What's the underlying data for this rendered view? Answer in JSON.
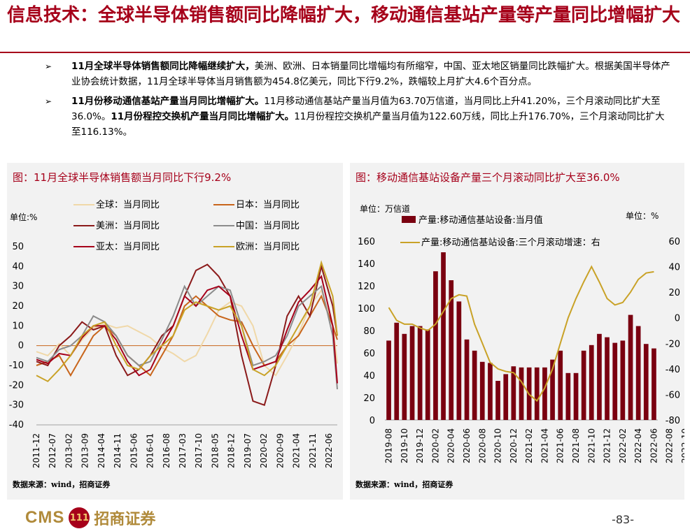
{
  "title": "信息技术：全球半导体销售额同比降幅扩大，移动通信基站产量等产量同比增幅扩大",
  "bullets": [
    {
      "bold": "11月全球半导体销售额同比降幅继续扩大，",
      "text": "美洲、欧洲、日本销量同比增幅均有所缩窄，中国、亚太地区销量同比跌幅扩大。根据美国半导体产业协会统计数据，11月全球半导体当月销售额为454.8亿美元，同比下行9.2%，跌幅较上月扩大4.6个百分点。"
    },
    {
      "bold": "11月份移动通信基站产量当月同比增幅扩大。",
      "text": "11月移动通信基站产量当月值为63.70万信道，当月同比上升41.20%，三个月滚动同比扩大至36.0%。",
      "bold2": "11月份程控交换机产量当月同比增幅扩大。",
      "text2": "11月份程控交换机产量当月值为122.60万线，同比上升176.70%，三个月滚动同比扩大至116.13%。"
    }
  ],
  "footer": {
    "logo": "CMS",
    "logo_mark": "111",
    "broker": "招商证券",
    "page": "-83-"
  },
  "chart_data": [
    {
      "type": "line",
      "title": "图：11月全球半导体销售额当月同比下行9.2%",
      "unit": "单位:%",
      "source": "数据来源：wind，招商证券",
      "ylim": [
        -40,
        50
      ],
      "yticks": [
        "50",
        "40",
        "30",
        "20",
        "10",
        "0",
        "-10",
        "-20",
        "-30",
        "-40"
      ],
      "xticks": [
        "2011-12",
        "2012-07",
        "2013-02",
        "2013-09",
        "2014-04",
        "2014-11",
        "2015-06",
        "2016-01",
        "2016-08",
        "2017-03",
        "2017-10",
        "2018-05",
        "2018-12",
        "2019-07",
        "2020-02",
        "2020-09",
        "2021-04",
        "2021-11",
        "2022-06"
      ],
      "x_index_range": [
        0,
        132
      ],
      "series": [
        {
          "name": "全球：当月同比",
          "color": "#f0d8a8",
          "points": [
            [
              0,
              -3
            ],
            [
              5,
              -5
            ],
            [
              10,
              1
            ],
            [
              15,
              -5
            ],
            [
              20,
              3
            ],
            [
              25,
              9
            ],
            [
              30,
              11
            ],
            [
              35,
              9
            ],
            [
              40,
              10
            ],
            [
              45,
              7
            ],
            [
              50,
              4
            ],
            [
              55,
              -1
            ],
            [
              60,
              -4
            ],
            [
              65,
              -8
            ],
            [
              70,
              -5
            ],
            [
              75,
              6
            ],
            [
              80,
              18
            ],
            [
              85,
              22
            ],
            [
              90,
              20
            ],
            [
              95,
              10
            ],
            [
              100,
              -10
            ],
            [
              105,
              -15
            ],
            [
              110,
              -5
            ],
            [
              115,
              6
            ],
            [
              120,
              20
            ],
            [
              125,
              28
            ],
            [
              130,
              10
            ],
            [
              132,
              -9
            ]
          ]
        },
        {
          "name": "日本：当月同比",
          "color": "#c8651b",
          "points": [
            [
              0,
              -10
            ],
            [
              5,
              -8
            ],
            [
              10,
              -5
            ],
            [
              15,
              -15
            ],
            [
              20,
              -5
            ],
            [
              25,
              5
            ],
            [
              30,
              10
            ],
            [
              35,
              5
            ],
            [
              40,
              -5
            ],
            [
              45,
              -10
            ],
            [
              50,
              -15
            ],
            [
              55,
              -5
            ],
            [
              60,
              5
            ],
            [
              65,
              20
            ],
            [
              70,
              25
            ],
            [
              75,
              20
            ],
            [
              80,
              15
            ],
            [
              85,
              13
            ],
            [
              90,
              12
            ],
            [
              95,
              0
            ],
            [
              100,
              -10
            ],
            [
              105,
              -8
            ],
            [
              110,
              0
            ],
            [
              115,
              5
            ],
            [
              120,
              15
            ],
            [
              125,
              25
            ],
            [
              130,
              10
            ],
            [
              132,
              3
            ]
          ]
        },
        {
          "name": "美洲：当月同比",
          "color": "#8b1a1a",
          "points": [
            [
              0,
              -8
            ],
            [
              5,
              -10
            ],
            [
              10,
              0
            ],
            [
              15,
              5
            ],
            [
              20,
              12
            ],
            [
              25,
              8
            ],
            [
              30,
              10
            ],
            [
              35,
              -5
            ],
            [
              40,
              -15
            ],
            [
              45,
              -12
            ],
            [
              50,
              -5
            ],
            [
              55,
              5
            ],
            [
              60,
              10
            ],
            [
              65,
              25
            ],
            [
              70,
              38
            ],
            [
              75,
              41
            ],
            [
              80,
              35
            ],
            [
              85,
              25
            ],
            [
              90,
              -5
            ],
            [
              95,
              -28
            ],
            [
              100,
              -30
            ],
            [
              105,
              -10
            ],
            [
              110,
              15
            ],
            [
              115,
              25
            ],
            [
              120,
              15
            ],
            [
              125,
              40
            ],
            [
              130,
              20
            ],
            [
              132,
              5
            ]
          ]
        },
        {
          "name": "中国：当月同比",
          "color": "#8c8c8c",
          "points": [
            [
              0,
              -6
            ],
            [
              5,
              -8
            ],
            [
              10,
              -2
            ],
            [
              15,
              0
            ],
            [
              20,
              5
            ],
            [
              25,
              15
            ],
            [
              30,
              12
            ],
            [
              35,
              5
            ],
            [
              40,
              -5
            ],
            [
              45,
              -10
            ],
            [
              50,
              -8
            ],
            [
              55,
              3
            ],
            [
              60,
              15
            ],
            [
              65,
              30
            ],
            [
              70,
              20
            ],
            [
              75,
              25
            ],
            [
              80,
              30
            ],
            [
              85,
              28
            ],
            [
              90,
              10
            ],
            [
              95,
              -10
            ],
            [
              100,
              -8
            ],
            [
              105,
              -5
            ],
            [
              110,
              5
            ],
            [
              115,
              20
            ],
            [
              120,
              25
            ],
            [
              125,
              30
            ],
            [
              130,
              5
            ],
            [
              132,
              -22
            ]
          ]
        },
        {
          "name": "亚太：当月同比",
          "color": "#a6001a",
          "points": [
            [
              0,
              -7
            ],
            [
              5,
              -9
            ],
            [
              10,
              -4
            ],
            [
              15,
              -5
            ],
            [
              20,
              4
            ],
            [
              25,
              10
            ],
            [
              30,
              10
            ],
            [
              35,
              3
            ],
            [
              40,
              -8
            ],
            [
              45,
              -15
            ],
            [
              50,
              -12
            ],
            [
              55,
              0
            ],
            [
              60,
              10
            ],
            [
              65,
              25
            ],
            [
              70,
              20
            ],
            [
              75,
              28
            ],
            [
              80,
              30
            ],
            [
              85,
              25
            ],
            [
              90,
              5
            ],
            [
              95,
              -12
            ],
            [
              100,
              -10
            ],
            [
              105,
              -8
            ],
            [
              110,
              8
            ],
            [
              115,
              22
            ],
            [
              120,
              28
            ],
            [
              125,
              35
            ],
            [
              130,
              10
            ],
            [
              132,
              -19
            ]
          ]
        },
        {
          "name": "欧洲：当月同比",
          "color": "#c9a227",
          "points": [
            [
              0,
              -15
            ],
            [
              5,
              -18
            ],
            [
              10,
              -12
            ],
            [
              15,
              -5
            ],
            [
              20,
              5
            ],
            [
              25,
              10
            ],
            [
              30,
              12
            ],
            [
              35,
              0
            ],
            [
              40,
              -10
            ],
            [
              45,
              -12
            ],
            [
              50,
              -5
            ],
            [
              55,
              0
            ],
            [
              60,
              5
            ],
            [
              65,
              18
            ],
            [
              70,
              22
            ],
            [
              75,
              20
            ],
            [
              80,
              18
            ],
            [
              85,
              20
            ],
            [
              90,
              10
            ],
            [
              95,
              -12
            ],
            [
              100,
              -15
            ],
            [
              105,
              -10
            ],
            [
              110,
              0
            ],
            [
              115,
              10
            ],
            [
              120,
              20
            ],
            [
              125,
              42
            ],
            [
              130,
              25
            ],
            [
              132,
              5
            ]
          ]
        }
      ]
    },
    {
      "type": "bar+line",
      "title": "图：移动通信基站设备产量三个月滚动同比扩大至36.0%",
      "unit_left": "单位：万信道",
      "unit_right": "单位：%",
      "source": "数据来源：wind，招商证券",
      "ylim_left": [
        0,
        160
      ],
      "yticks_left": [
        "160",
        "140",
        "120",
        "100",
        "80",
        "60",
        "40",
        "20",
        "0"
      ],
      "ylim_right": [
        -80,
        60
      ],
      "yticks_right": [
        "60",
        "40",
        "20",
        "0",
        "-20",
        "-40",
        "-60",
        "-80"
      ],
      "xticks": [
        "2019-08",
        "2019-10",
        "2019-12",
        "2020-02",
        "2020-04",
        "2020-06",
        "2020-08",
        "2020-10",
        "2020-12",
        "2021-02",
        "2021-04",
        "2021-06",
        "2021-08",
        "2021-10",
        "2021-12",
        "2022-02",
        "2022-04",
        "2022-06",
        "2022-08",
        "2022-10"
      ],
      "bar_series": {
        "name": "产量:移动通信基站设备:当月值",
        "color": "#7a0010",
        "values": [
          71,
          87,
          77,
          84,
          84,
          81,
          133,
          150,
          125,
          106,
          72,
          62,
          52,
          51,
          35,
          41,
          48,
          47,
          47,
          47,
          47,
          54,
          62,
          42,
          42,
          62,
          67,
          77,
          74,
          69,
          71,
          94,
          84,
          68,
          64
        ]
      },
      "line_series": {
        "name": "产量:移动通信基站设备:三个月滚动增速：右",
        "color": "#c9a227",
        "values": [
          8,
          -2,
          -5,
          -5,
          -8,
          -10,
          -5,
          5,
          15,
          18,
          17,
          -5,
          -20,
          -35,
          -40,
          -42,
          -43,
          -50,
          -60,
          -65,
          -55,
          -40,
          -20,
          0,
          15,
          28,
          40,
          28,
          15,
          10,
          12,
          20,
          30,
          35,
          36
        ]
      }
    }
  ]
}
